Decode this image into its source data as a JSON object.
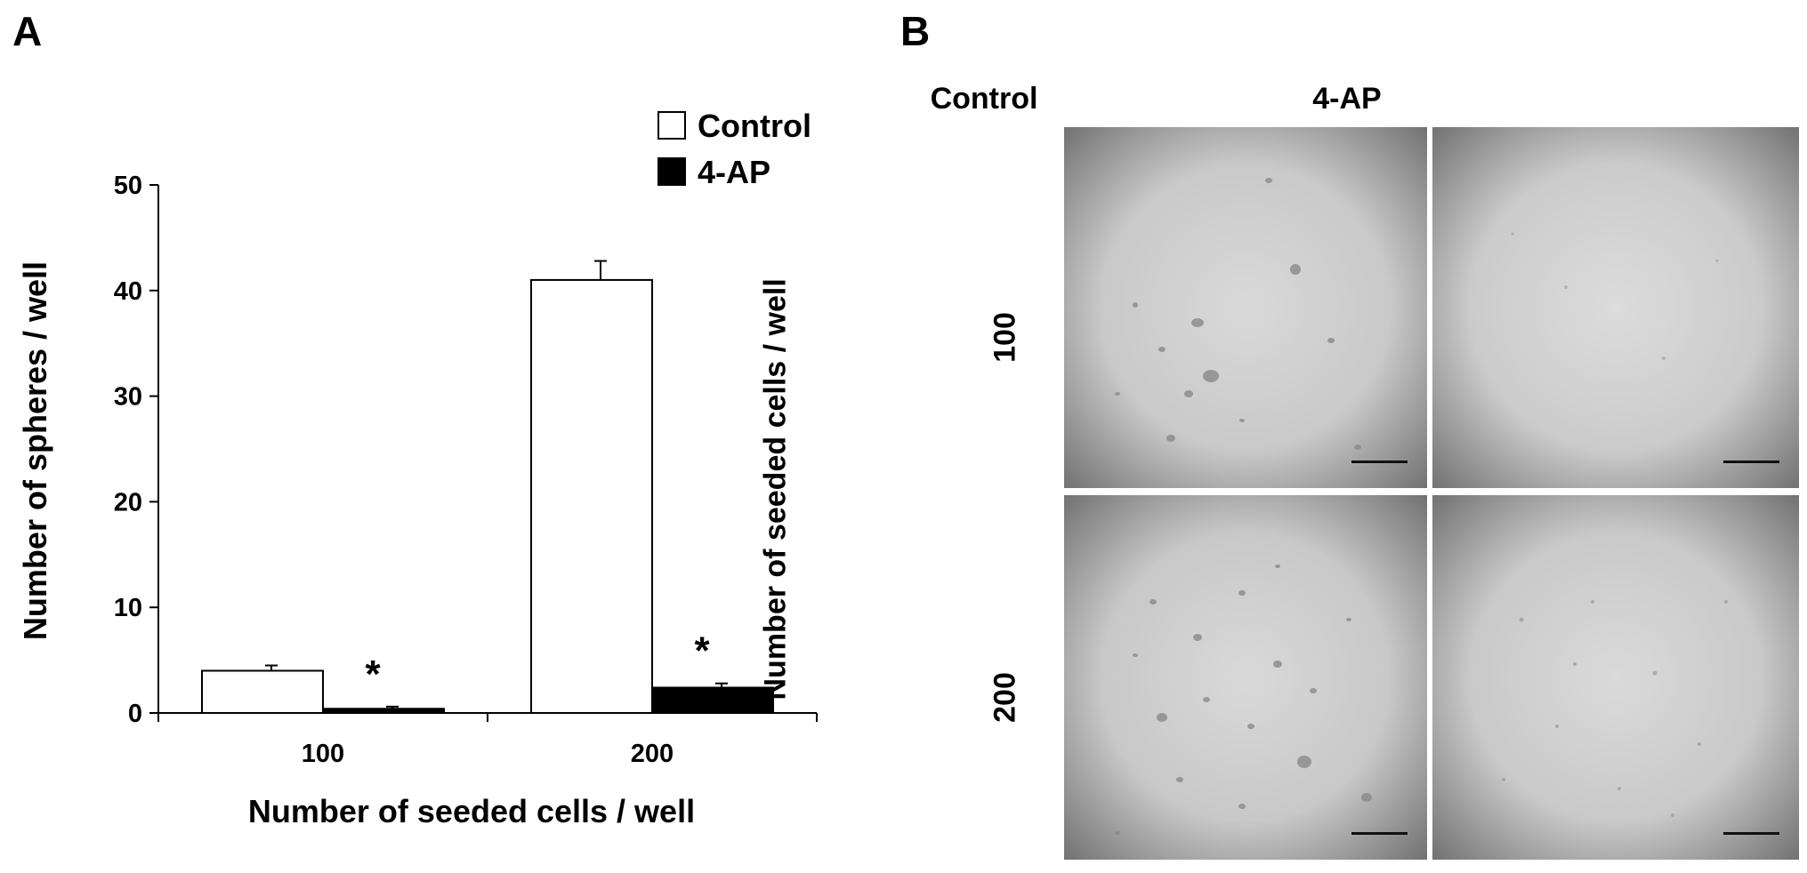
{
  "panels": {
    "a_letter": "A",
    "b_letter": "B"
  },
  "chart_data": {
    "type": "bar",
    "categories": [
      "100",
      "200"
    ],
    "series": [
      {
        "name": "Control",
        "values": [
          4.0,
          41.0
        ],
        "errors": [
          0.5,
          1.8
        ],
        "color": "#ffffff"
      },
      {
        "name": "4-AP",
        "values": [
          0.4,
          2.4
        ],
        "errors": [
          0.2,
          0.4
        ],
        "color": "#000000"
      }
    ],
    "significance": [
      "*",
      "*"
    ],
    "xlabel": "Number of seeded cells / well",
    "ylabel": "Number of spheres / well",
    "ylim": [
      0,
      50
    ],
    "yticks": [
      0,
      10,
      20,
      30,
      40,
      50
    ],
    "grid": false,
    "legend_position": "top-right"
  },
  "micrographs": {
    "columns": [
      "Control",
      "4-AP"
    ],
    "rows": [
      "100",
      "200"
    ],
    "row_axis_label": "Number of seeded cells / well"
  }
}
